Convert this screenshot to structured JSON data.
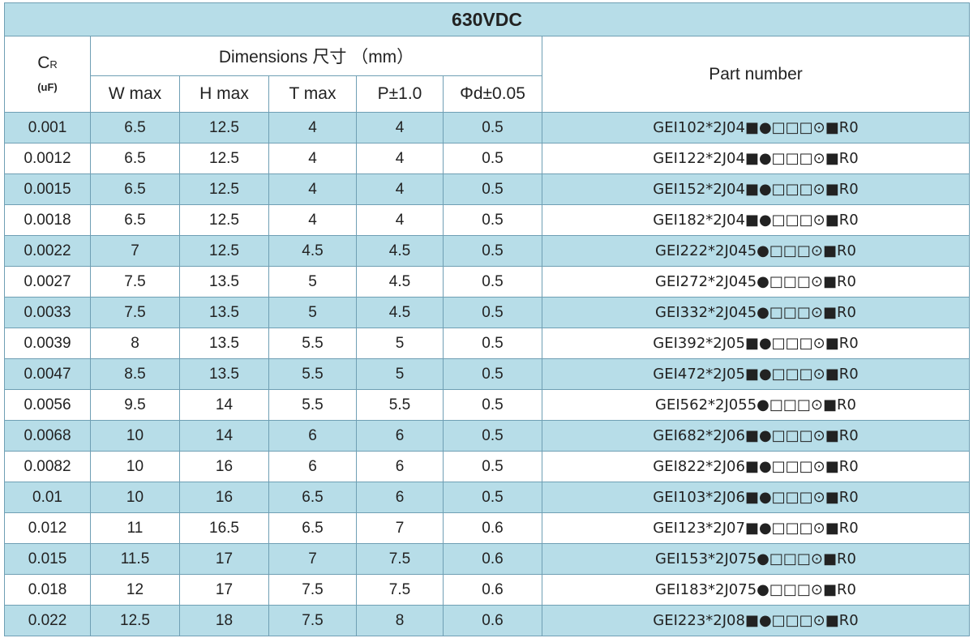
{
  "table": {
    "title": "630VDC",
    "header": {
      "cr": "C",
      "cr_sub": "R",
      "cr_unit": "(uF)",
      "dimensions": "Dimensions  尺寸 （mm）",
      "columns": [
        "W max",
        "H max",
        "T max",
        "P±1.0",
        "Φd±0.05"
      ],
      "part_number": "Part number"
    },
    "rows": [
      [
        "0.001",
        "6.5",
        "12.5",
        "4",
        "4",
        "0.5",
        "GEI102*2J04■●□□□⊙■R0"
      ],
      [
        "0.0012",
        "6.5",
        "12.5",
        "4",
        "4",
        "0.5",
        "GEI122*2J04■●□□□⊙■R0"
      ],
      [
        "0.0015",
        "6.5",
        "12.5",
        "4",
        "4",
        "0.5",
        "GEI152*2J04■●□□□⊙■R0"
      ],
      [
        "0.0018",
        "6.5",
        "12.5",
        "4",
        "4",
        "0.5",
        "GEI182*2J04■●□□□⊙■R0"
      ],
      [
        "0.0022",
        "7",
        "12.5",
        "4.5",
        "4.5",
        "0.5",
        "GEI222*2J045●□□□⊙■R0"
      ],
      [
        "0.0027",
        "7.5",
        "13.5",
        "5",
        "4.5",
        "0.5",
        "GEI272*2J045●□□□⊙■R0"
      ],
      [
        "0.0033",
        "7.5",
        "13.5",
        "5",
        "4.5",
        "0.5",
        "GEI332*2J045●□□□⊙■R0"
      ],
      [
        "0.0039",
        "8",
        "13.5",
        "5.5",
        "5",
        "0.5",
        "GEI392*2J05■●□□□⊙■R0"
      ],
      [
        "0.0047",
        "8.5",
        "13.5",
        "5.5",
        "5",
        "0.5",
        "GEI472*2J05■●□□□⊙■R0"
      ],
      [
        "0.0056",
        "9.5",
        "14",
        "5.5",
        "5.5",
        "0.5",
        "GEI562*2J055●□□□⊙■R0"
      ],
      [
        "0.0068",
        "10",
        "14",
        "6",
        "6",
        "0.5",
        "GEI682*2J06■●□□□⊙■R0"
      ],
      [
        "0.0082",
        "10",
        "16",
        "6",
        "6",
        "0.5",
        "GEI822*2J06■●□□□⊙■R0"
      ],
      [
        "0.01",
        "10",
        "16",
        "6.5",
        "6",
        "0.5",
        "GEI103*2J06■●□□□⊙■R0"
      ],
      [
        "0.012",
        "11",
        "16.5",
        "6.5",
        "7",
        "0.6",
        "GEI123*2J07■●□□□⊙■R0"
      ],
      [
        "0.015",
        "11.5",
        "17",
        "7",
        "7.5",
        "0.6",
        "GEI153*2J075●□□□⊙■R0"
      ],
      [
        "0.018",
        "12",
        "17",
        "7.5",
        "7.5",
        "0.6",
        "GEI183*2J075●□□□⊙■R0"
      ],
      [
        "0.022",
        "12.5",
        "18",
        "7.5",
        "8",
        "0.6",
        "GEI223*2J08■●□□□⊙■R0"
      ]
    ]
  }
}
